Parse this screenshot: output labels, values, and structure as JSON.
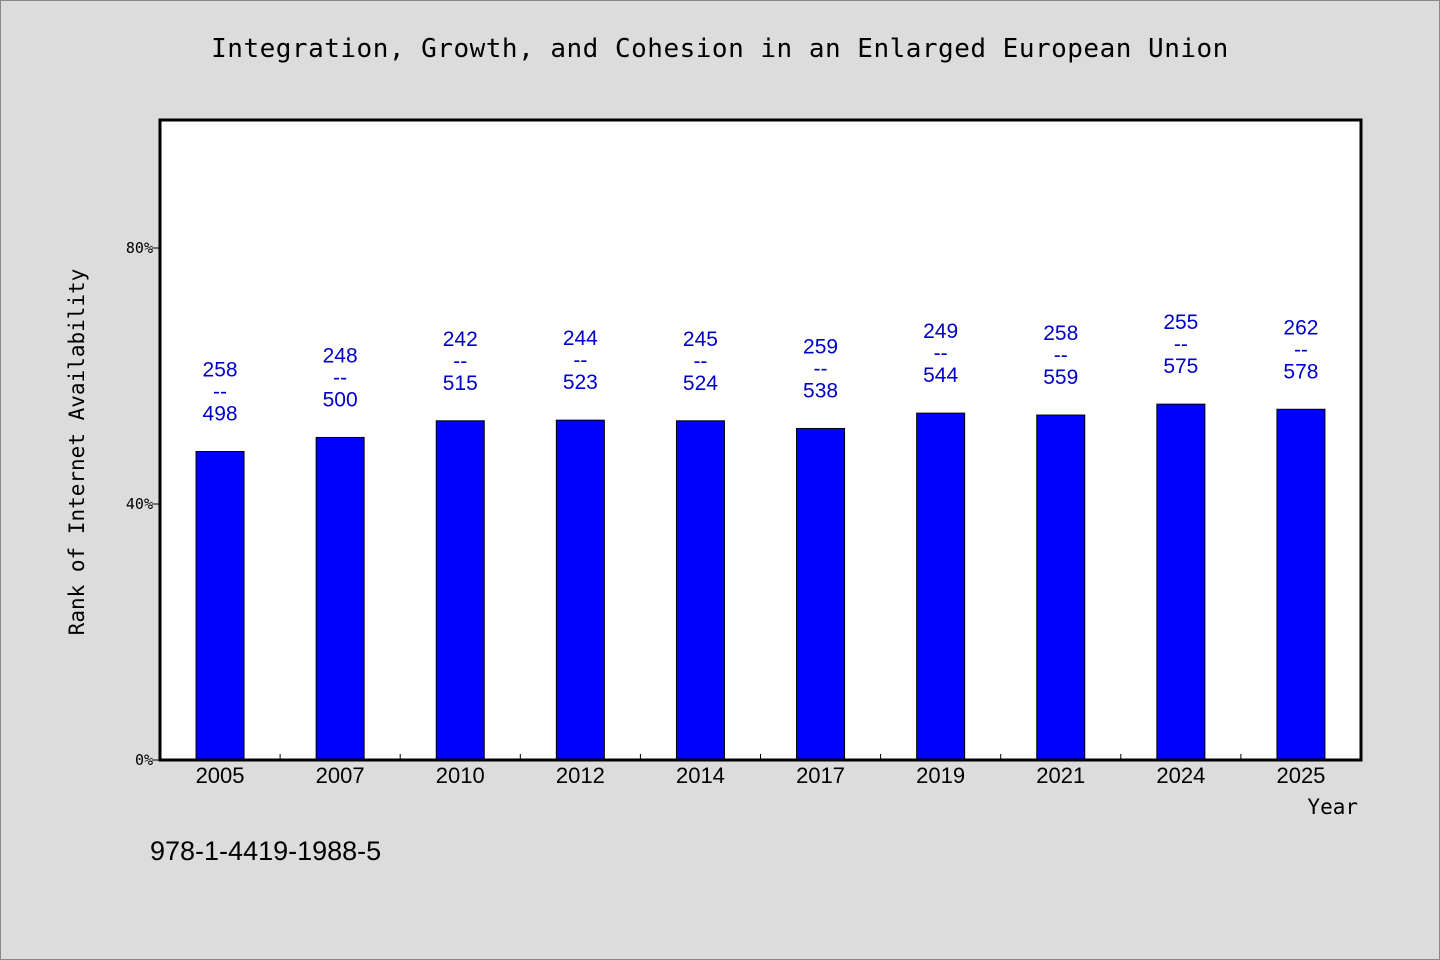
{
  "chart_data": {
    "type": "bar",
    "title": "Integration, Growth, and Cohesion in an Enlarged European Union",
    "xlabel": "Year",
    "ylabel": "Rank of Internet Availability",
    "categories": [
      "2005",
      "2007",
      "2010",
      "2012",
      "2014",
      "2017",
      "2019",
      "2021",
      "2024",
      "2025"
    ],
    "values": [
      48.2,
      50.4,
      53.0,
      53.1,
      53.0,
      51.8,
      54.2,
      53.9,
      55.6,
      54.8
    ],
    "data_labels": [
      [
        "258",
        "--",
        "498"
      ],
      [
        "248",
        "--",
        "500"
      ],
      [
        "242",
        "--",
        "515"
      ],
      [
        "244",
        "--",
        "523"
      ],
      [
        "245",
        "--",
        "524"
      ],
      [
        "259",
        "--",
        "538"
      ],
      [
        "249",
        "--",
        "544"
      ],
      [
        "258",
        "--",
        "559"
      ],
      [
        "255",
        "--",
        "575"
      ],
      [
        "262",
        "--",
        "578"
      ]
    ],
    "yticks": [
      {
        "value": 0,
        "label": "0%"
      },
      {
        "value": 40,
        "label": "40%"
      },
      {
        "value": 80,
        "label": "80%"
      }
    ],
    "ylim": [
      0,
      100
    ],
    "grid": false,
    "legend": "none",
    "bar_color": "#0000ff",
    "label_color": "#0000cc",
    "background": "#dcdcdc",
    "plot_background": "#ffffff"
  },
  "footer": {
    "isbn": "978-1-4419-1988-5"
  }
}
